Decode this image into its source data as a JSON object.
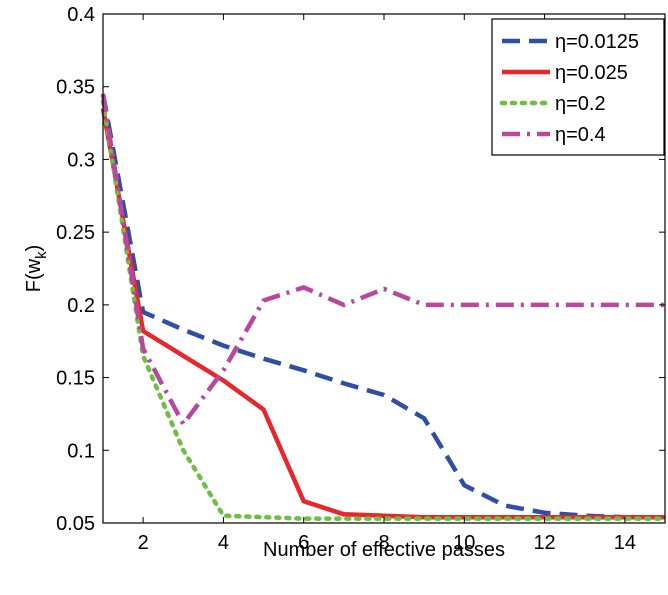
{
  "chart_data": {
    "type": "line",
    "xlabel": "Number of effective passes",
    "ylabel": "F(w",
    "ylabel_subscript": "k",
    "ylabel_close": ")",
    "xlim": [
      1,
      15
    ],
    "ylim": [
      0.05,
      0.4
    ],
    "xticks": [
      2,
      4,
      6,
      8,
      10,
      12,
      14
    ],
    "yticks": [
      0.05,
      0.1,
      0.15,
      0.2,
      0.25,
      0.3,
      0.35,
      0.4
    ],
    "ytick_labels": [
      "0.05",
      "0.1",
      "0.15",
      "0.2",
      "0.25",
      "0.3",
      "0.35",
      "0.4"
    ],
    "grid": false,
    "legend_position": "top-right",
    "x": [
      1,
      2,
      3,
      4,
      5,
      6,
      7,
      8,
      9,
      10,
      11,
      12,
      13,
      14,
      15
    ],
    "series": [
      {
        "name": "η=0.0125",
        "color": "#2e4fa3",
        "style": "dashed",
        "values": [
          0.345,
          0.195,
          0.183,
          0.172,
          0.163,
          0.155,
          0.146,
          0.138,
          0.122,
          0.076,
          0.062,
          0.057,
          0.055,
          0.054,
          0.054
        ]
      },
      {
        "name": "η=0.025",
        "color": "#e8272c",
        "style": "solid",
        "values": [
          0.335,
          0.182,
          0.165,
          0.148,
          0.128,
          0.065,
          0.056,
          0.055,
          0.054,
          0.054,
          0.054,
          0.054,
          0.054,
          0.054,
          0.054
        ]
      },
      {
        "name": "η=0.2",
        "color": "#6cbf3f",
        "style": "dotted",
        "values": [
          0.34,
          0.165,
          0.1,
          0.055,
          0.054,
          0.053,
          0.053,
          0.053,
          0.053,
          0.053,
          0.053,
          0.053,
          0.053,
          0.053,
          0.053
        ]
      },
      {
        "name": "η=0.4",
        "color": "#b8479e",
        "style": "dashdot",
        "values": [
          0.345,
          0.17,
          0.118,
          0.155,
          0.203,
          0.212,
          0.2,
          0.211,
          0.2,
          0.2,
          0.2,
          0.2,
          0.2,
          0.2,
          0.2
        ]
      }
    ]
  }
}
